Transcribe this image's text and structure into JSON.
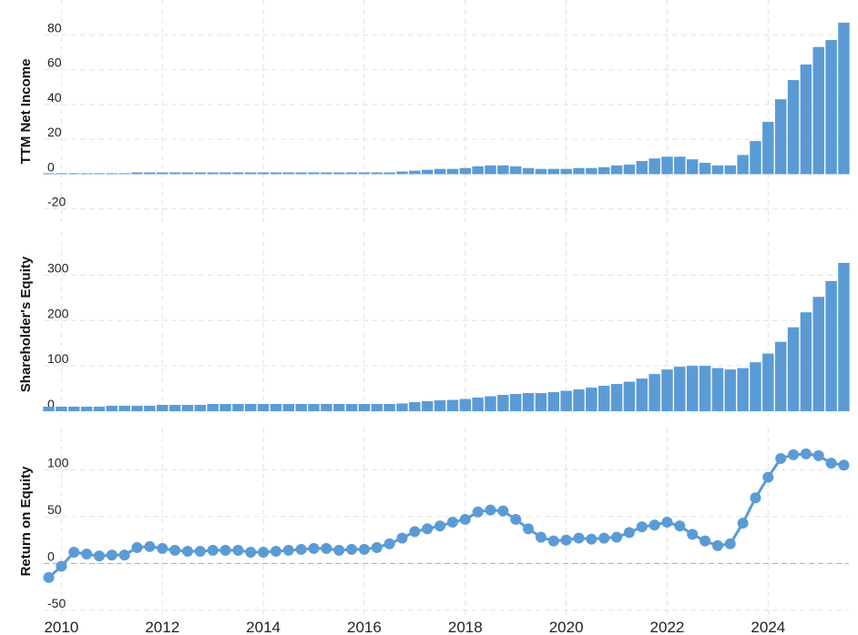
{
  "chart_data": [
    {
      "type": "bar",
      "ylabel": "TTM Net Income",
      "color": "#5b9bd5",
      "grid": true,
      "x": [
        2009.75,
        2010,
        2010.25,
        2010.5,
        2010.75,
        2011,
        2011.25,
        2011.5,
        2011.75,
        2012,
        2012.25,
        2012.5,
        2012.75,
        2013,
        2013.25,
        2013.5,
        2013.75,
        2014,
        2014.25,
        2014.5,
        2014.75,
        2015,
        2015.25,
        2015.5,
        2015.75,
        2016,
        2016.25,
        2016.5,
        2016.75,
        2017,
        2017.25,
        2017.5,
        2017.75,
        2018,
        2018.25,
        2018.5,
        2018.75,
        2019,
        2019.25,
        2019.5,
        2019.75,
        2020,
        2020.25,
        2020.5,
        2020.75,
        2021,
        2021.25,
        2021.5,
        2021.75,
        2022,
        2022.25,
        2022.5,
        2022.75,
        2023,
        2023.25,
        2023.5,
        2023.75,
        2024,
        2024.25,
        2024.5,
        2024.75,
        2025,
        2025.25,
        2025.5
      ],
      "values": [
        0.5,
        0.5,
        0.5,
        0.5,
        0.5,
        0.5,
        0.5,
        1,
        1,
        1,
        1,
        1,
        1,
        1,
        1,
        1,
        1,
        1,
        1,
        1,
        1,
        1,
        1,
        1,
        1,
        1,
        1,
        1,
        1.5,
        2,
        2.5,
        3,
        3,
        3.5,
        4.5,
        5,
        5,
        4.5,
        3.5,
        3,
        3,
        3,
        3.5,
        3.5,
        4,
        5,
        5.5,
        7.5,
        9,
        10,
        10,
        8.5,
        6.5,
        5,
        5,
        11,
        19,
        30,
        43,
        54,
        63,
        73,
        77,
        87
      ],
      "xlim": [
        2009.65,
        2025.6
      ],
      "xticks": [
        2010,
        2012,
        2014,
        2016,
        2018,
        2020,
        2022,
        2024
      ],
      "ylim": [
        -28,
        100
      ],
      "yticks": [
        -20,
        0,
        20,
        40,
        60,
        80
      ]
    },
    {
      "type": "bar",
      "ylabel": "Shareholder's Equity",
      "color": "#5b9bd5",
      "grid": true,
      "x": [
        2009.75,
        2010,
        2010.25,
        2010.5,
        2010.75,
        2011,
        2011.25,
        2011.5,
        2011.75,
        2012,
        2012.25,
        2012.5,
        2012.75,
        2013,
        2013.25,
        2013.5,
        2013.75,
        2014,
        2014.25,
        2014.5,
        2014.75,
        2015,
        2015.25,
        2015.5,
        2015.75,
        2016,
        2016.25,
        2016.5,
        2016.75,
        2017,
        2017.25,
        2017.5,
        2017.75,
        2018,
        2018.25,
        2018.5,
        2018.75,
        2019,
        2019.25,
        2019.5,
        2019.75,
        2020,
        2020.25,
        2020.5,
        2020.75,
        2021,
        2021.25,
        2021.5,
        2021.75,
        2022,
        2022.25,
        2022.5,
        2022.75,
        2023,
        2023.25,
        2023.5,
        2023.75,
        2024,
        2024.25,
        2024.5,
        2024.75,
        2025,
        2025.25,
        2025.5
      ],
      "values": [
        10,
        10,
        10,
        10,
        10,
        12,
        12,
        12,
        12,
        14,
        14,
        14,
        14,
        16,
        16,
        16,
        16,
        16,
        16,
        16,
        16,
        16,
        16,
        16,
        16,
        16,
        16,
        16,
        17,
        20,
        22,
        24,
        25,
        27,
        30,
        33,
        36,
        38,
        40,
        40,
        42,
        45,
        48,
        52,
        56,
        60,
        65,
        72,
        82,
        92,
        98,
        100,
        100,
        95,
        92,
        95,
        108,
        127,
        153,
        185,
        218,
        252,
        287,
        327
      ],
      "xlim": [
        2009.65,
        2025.6
      ],
      "xticks": [
        2010,
        2012,
        2014,
        2016,
        2018,
        2020,
        2022,
        2024
      ],
      "ylim": [
        -12,
        395
      ],
      "yticks": [
        0,
        100,
        200,
        300
      ]
    },
    {
      "type": "line",
      "ylabel": "Return on Equity",
      "color": "#5b9bd5",
      "grid": true,
      "x": [
        2009.75,
        2010,
        2010.25,
        2010.5,
        2010.75,
        2011,
        2011.25,
        2011.5,
        2011.75,
        2012,
        2012.25,
        2012.5,
        2012.75,
        2013,
        2013.25,
        2013.5,
        2013.75,
        2014,
        2014.25,
        2014.5,
        2014.75,
        2015,
        2015.25,
        2015.5,
        2015.75,
        2016,
        2016.25,
        2016.5,
        2016.75,
        2017,
        2017.25,
        2017.5,
        2017.75,
        2018,
        2018.25,
        2018.5,
        2018.75,
        2019,
        2019.25,
        2019.5,
        2019.75,
        2020,
        2020.25,
        2020.5,
        2020.75,
        2021,
        2021.25,
        2021.5,
        2021.75,
        2022,
        2022.25,
        2022.5,
        2022.75,
        2023,
        2023.25,
        2023.5,
        2023.75,
        2024,
        2024.25,
        2024.5,
        2024.75,
        2025,
        2025.25,
        2025.5
      ],
      "values": [
        -15,
        -3,
        12,
        10,
        8,
        9,
        9,
        17,
        18,
        16,
        14,
        13,
        13,
        14,
        14,
        14,
        12,
        12,
        13,
        14,
        15,
        16,
        16,
        14,
        15,
        15,
        17,
        21,
        27,
        34,
        37,
        40,
        44,
        47,
        55,
        57,
        56,
        47,
        37,
        28,
        24,
        25,
        27,
        26,
        27,
        28,
        33,
        39,
        41,
        44,
        40,
        31,
        24,
        19,
        21,
        43,
        70,
        92,
        112,
        116,
        117,
        115,
        107,
        105
      ],
      "xlim": [
        2009.65,
        2025.6
      ],
      "xticks": [
        2010,
        2012,
        2014,
        2016,
        2018,
        2020,
        2022,
        2024
      ],
      "ylim": [
        -55,
        145
      ],
      "yticks": [
        -50,
        0,
        50,
        100
      ]
    }
  ]
}
